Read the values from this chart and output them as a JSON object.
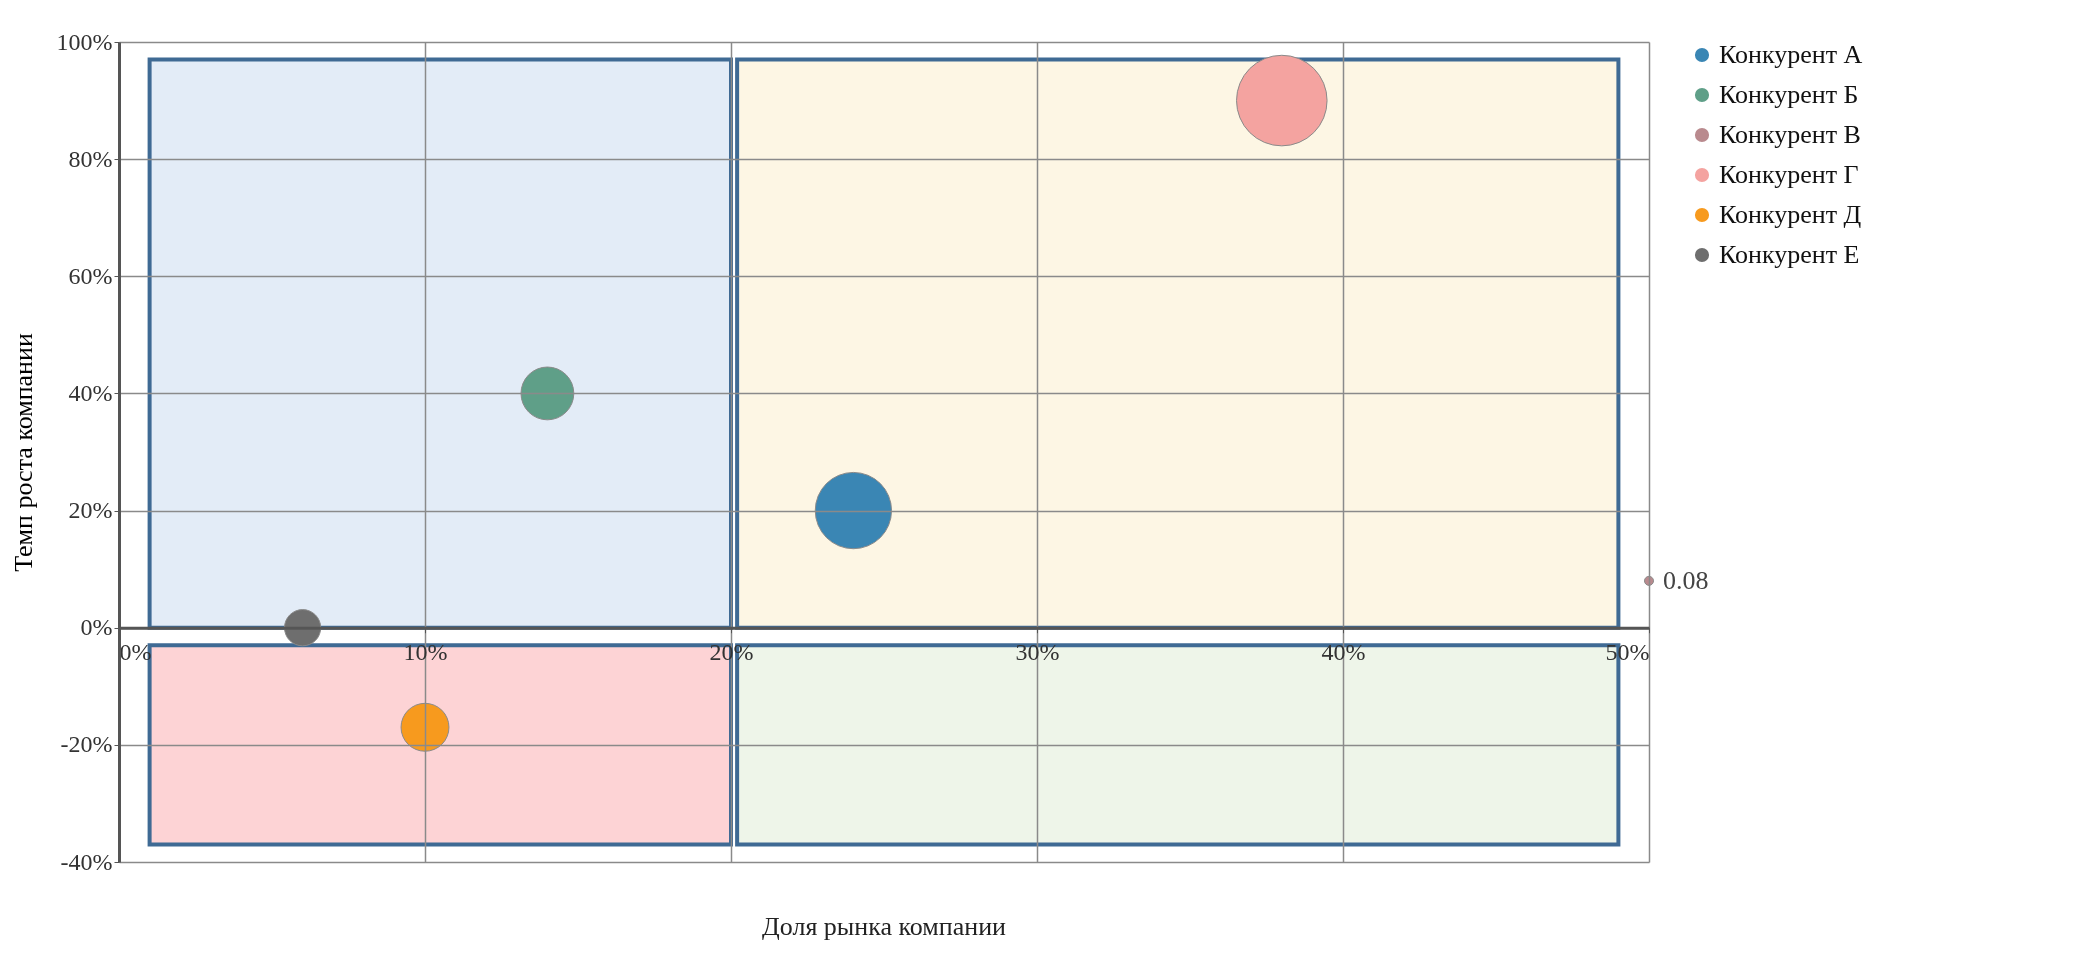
{
  "chart_data": {
    "type": "bubble",
    "xlabel": "Доля рынка компании",
    "ylabel": "Темп роста компании",
    "xlim": [
      0,
      0.5
    ],
    "ylim": [
      -0.4,
      1
    ],
    "xticks": [
      {
        "value": 0,
        "label": "0%"
      },
      {
        "value": 0.1,
        "label": "10%"
      },
      {
        "value": 0.2,
        "label": "20%"
      },
      {
        "value": 0.3,
        "label": "30%"
      },
      {
        "value": 0.4,
        "label": "40%"
      },
      {
        "value": 0.5,
        "label": "50%"
      }
    ],
    "yticks": [
      {
        "value": -0.4,
        "label": "-40%"
      },
      {
        "value": -0.2,
        "label": "-20%"
      },
      {
        "value": 0,
        "label": "0%"
      },
      {
        "value": 0.2,
        "label": "20%"
      },
      {
        "value": 0.4,
        "label": "40%"
      },
      {
        "value": 0.6,
        "label": "60%"
      },
      {
        "value": 0.8,
        "label": "80%"
      },
      {
        "value": 1,
        "label": "100%"
      }
    ],
    "grid": true,
    "legend": "right",
    "series": [
      {
        "name": "Конкурент А",
        "color": "#3a86b4",
        "x": [
          0.24
        ],
        "values": [
          0.2
        ],
        "sizes": [
          0.71
        ]
      },
      {
        "name": "Конкурент Б",
        "color": "#5f9f88",
        "x": [
          0.14
        ],
        "values": [
          0.4
        ],
        "sizes": [
          0.34
        ]
      },
      {
        "name": "Конкурент В",
        "color": "#b98a8e",
        "x": [
          0.5
        ],
        "values": [
          0.08
        ],
        "sizes": [
          0.01
        ],
        "value_labels": [
          "0.08"
        ]
      },
      {
        "name": "Конкурент Г",
        "color": "#f4a3a0",
        "x": [
          0.38
        ],
        "values": [
          0.9
        ],
        "sizes": [
          1
        ]
      },
      {
        "name": "Конкурент Д",
        "color": "#f79a1e",
        "x": [
          0.1
        ],
        "values": [
          -0.17
        ],
        "sizes": [
          0.28
        ]
      },
      {
        "name": "Конкурент Е",
        "color": "#6e6e6e",
        "x": [
          0.06
        ],
        "values": [
          0
        ],
        "sizes": [
          0.16
        ]
      }
    ]
  }
}
